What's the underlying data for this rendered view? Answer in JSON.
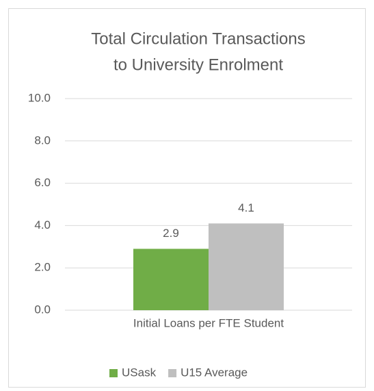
{
  "chart_data": {
    "type": "bar",
    "title": [
      "Total Circulation Transactions",
      "to University Enrolment"
    ],
    "categories": [
      "Initial Loans per FTE Student"
    ],
    "series": [
      {
        "name": "USask",
        "color": "#70ad47",
        "values": [
          2.9
        ]
      },
      {
        "name": "U15 Average",
        "color": "#bfbfbf",
        "values": [
          4.1
        ]
      }
    ],
    "ylim": [
      0,
      10
    ],
    "yticks": [
      {
        "value": 0,
        "label": "0.0"
      },
      {
        "value": 2,
        "label": "2.0"
      },
      {
        "value": 4,
        "label": "4.0"
      },
      {
        "value": 6,
        "label": "6.0"
      },
      {
        "value": 8,
        "label": "8.0"
      },
      {
        "value": 10,
        "label": "10.0"
      }
    ],
    "grid": true,
    "legend": "bottom"
  }
}
